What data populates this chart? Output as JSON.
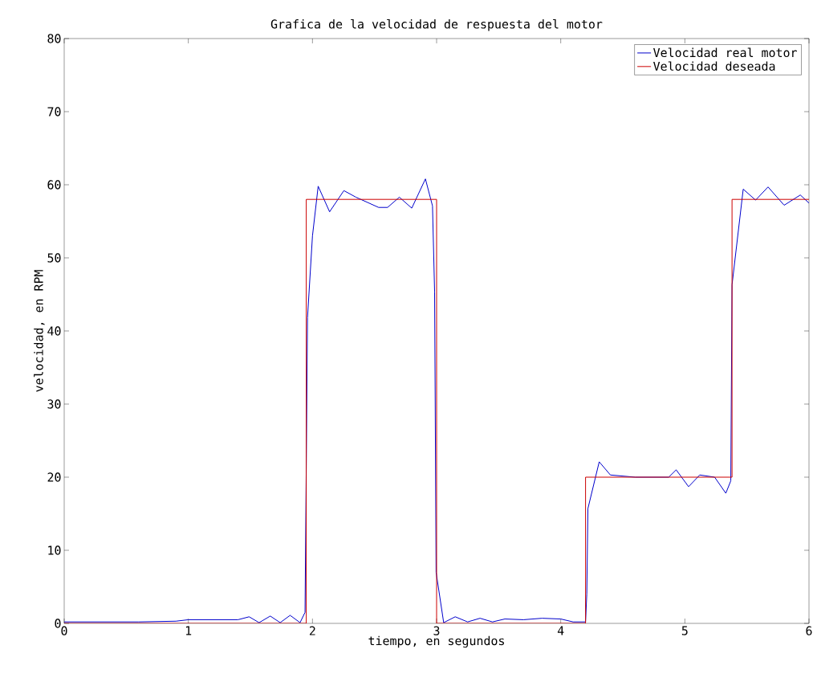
{
  "chart_data": {
    "type": "line",
    "title": "Grafica de la velocidad de respuesta del motor",
    "xlabel": "tiempo, en segundos",
    "ylabel": "velocidad, en RPM",
    "xlim": [
      0,
      6
    ],
    "ylim": [
      0,
      80
    ],
    "xticks": [
      0,
      1,
      2,
      3,
      4,
      5,
      6
    ],
    "yticks": [
      0,
      10,
      20,
      30,
      40,
      50,
      60,
      70,
      80
    ],
    "grid": false,
    "legend": "top right",
    "marker": "none",
    "line_style": "solid",
    "series": [
      {
        "name": "Velocidad real motor",
        "color": "#0000cc",
        "x": [
          0,
          0.3,
          0.6,
          0.9,
          1.0,
          1.4,
          1.49,
          1.57,
          1.66,
          1.74,
          1.82,
          1.9,
          1.94,
          1.96,
          2.0,
          2.046,
          2.138,
          2.253,
          2.35,
          2.533,
          2.605,
          2.7,
          2.8,
          2.91,
          2.967,
          2.984,
          2.996,
          3.057,
          3.15,
          3.25,
          3.35,
          3.45,
          3.55,
          3.7,
          3.85,
          4.0,
          4.1,
          4.2,
          4.21,
          4.219,
          4.31,
          4.4,
          4.6,
          4.87,
          4.93,
          5.03,
          5.12,
          5.24,
          5.33,
          5.37,
          5.38,
          5.47,
          5.57,
          5.67,
          5.8,
          5.93,
          6.0
        ],
        "values": [
          0.2,
          0.2,
          0.2,
          0.3,
          0.5,
          0.5,
          0.9,
          0.1,
          1.0,
          0.1,
          1.1,
          0.1,
          1.5,
          41.8,
          53,
          59.8,
          56.3,
          59.2,
          58.3,
          56.9,
          56.9,
          58.3,
          56.8,
          60.8,
          57.1,
          45.3,
          7.0,
          0.1,
          0.9,
          0.2,
          0.7,
          0.2,
          0.6,
          0.5,
          0.7,
          0.6,
          0.2,
          0.2,
          4.0,
          15.7,
          22.1,
          20.3,
          20.0,
          20.0,
          21.0,
          18.7,
          20.3,
          20.0,
          17.8,
          19.5,
          46.3,
          59.4,
          57.9,
          59.7,
          57.2,
          58.6,
          57.5
        ]
      },
      {
        "name": "Velocidad deseada",
        "color": "#cc0000",
        "x": [
          0,
          1.95,
          1.95,
          3.0,
          3.0,
          4.2,
          4.2,
          5.38,
          5.38,
          6.0
        ],
        "values": [
          0,
          0,
          58,
          58,
          0,
          0,
          20,
          20,
          58,
          58
        ]
      }
    ]
  }
}
